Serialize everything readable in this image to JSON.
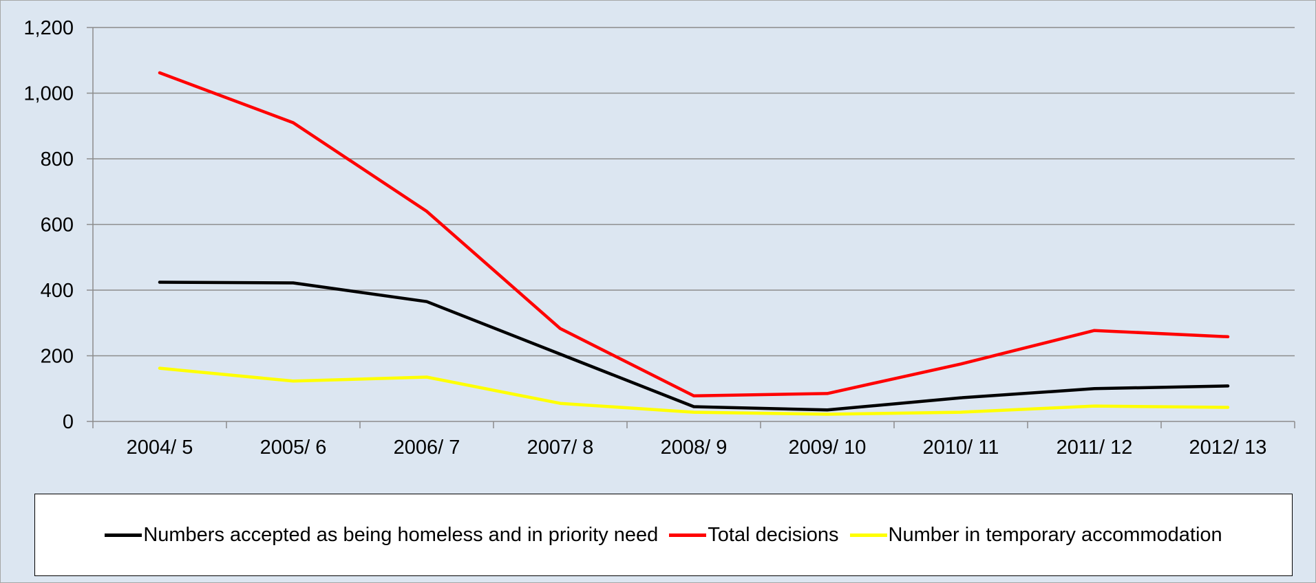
{
  "chart_data": {
    "type": "line",
    "categories": [
      "2004/ 5",
      "2005/ 6",
      "2006/ 7",
      "2007/ 8",
      "2008/ 9",
      "2009/ 10",
      "2010/ 11",
      "2011/ 12",
      "2012/ 13"
    ],
    "ylim": [
      0,
      1200
    ],
    "yticks": [
      0,
      200,
      400,
      600,
      800,
      1000,
      1200
    ],
    "ytick_labels": [
      "0",
      "200",
      "400",
      "600",
      "800",
      "1,000",
      "1,200"
    ],
    "grid": "horizontal",
    "legend_position": "bottom",
    "series": [
      {
        "name": "Numbers accepted as being homeless and in priority need",
        "color": "#000000",
        "values": [
          424,
          422,
          365,
          205,
          45,
          35,
          72,
          100,
          108
        ]
      },
      {
        "name": "Total decisions",
        "color": "#ff0000",
        "values": [
          1062,
          910,
          640,
          283,
          78,
          85,
          175,
          277,
          258
        ]
      },
      {
        "name": "Number in temporary accommodation",
        "color": "#ffff00",
        "values": [
          162,
          123,
          135,
          55,
          28,
          22,
          28,
          47,
          43
        ]
      }
    ]
  }
}
